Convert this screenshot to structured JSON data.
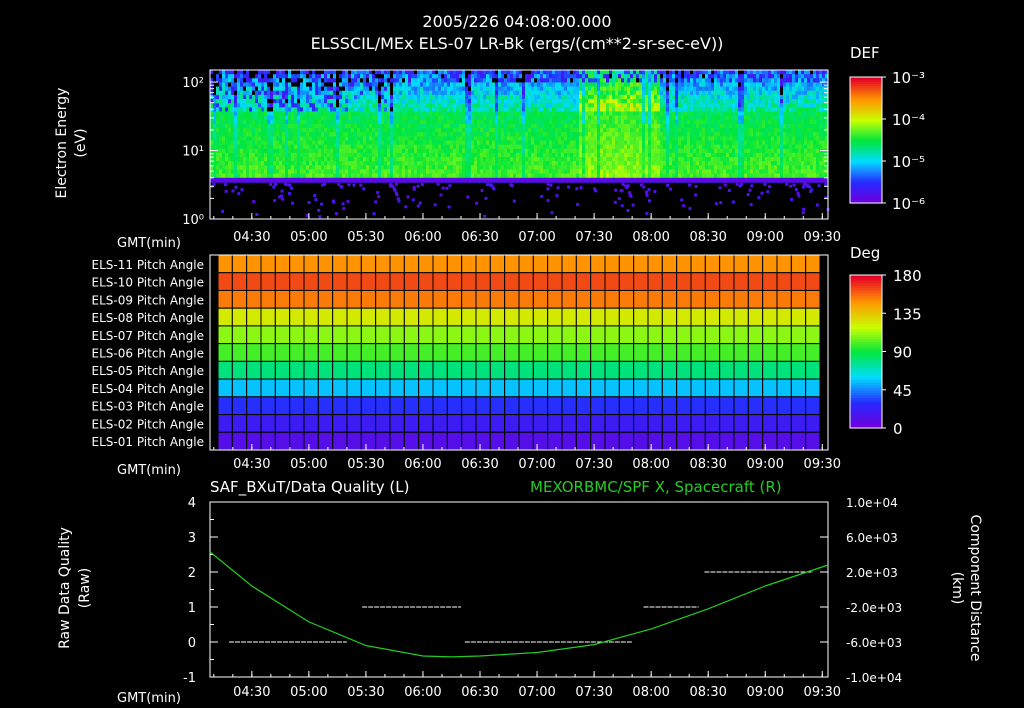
{
  "header": {
    "title_line1": "2005/226 04:08:00.000",
    "title_line2": "ELSSCIL/MEx ELS-07 LR-Bk   (ergs/(cm**2-sr-sec-eV))"
  },
  "time_axis": {
    "label": "GMT(min)",
    "ticks": [
      "04:30",
      "05:00",
      "05:30",
      "06:00",
      "06:30",
      "07:00",
      "07:30",
      "08:00",
      "08:30",
      "09:00",
      "09:30"
    ]
  },
  "chart_data": [
    {
      "type": "heatmap",
      "title": "ELSSCIL/MEx ELS-07 LR-Bk   (ergs/(cm**2-sr-sec-eV))",
      "ylabel_line1": "Electron Energy",
      "ylabel_line2": "(eV)",
      "yscale": "log",
      "ylim": [
        1,
        150
      ],
      "yticks": [
        "10²",
        "10¹",
        "10⁰"
      ],
      "xlim": [
        "04:08",
        "09:33"
      ],
      "colorbar": {
        "label": "DEF",
        "ticks": [
          "10⁻³",
          "10⁻⁴",
          "10⁻⁵",
          "10⁻⁶"
        ],
        "range": [
          "1e-6",
          "1e-3"
        ]
      },
      "features": {
        "energy_cutoff_eV": 4,
        "dominant_level_below_10eV": "1e-5 to 1e-4",
        "enhancement_window": [
          "07:30",
          "08:00"
        ]
      }
    },
    {
      "type": "heatmap",
      "rows": [
        "ELS-11 Pitch Angle",
        "ELS-10 Pitch Angle",
        "ELS-09 Pitch Angle",
        "ELS-08 Pitch Angle",
        "ELS-07 Pitch Angle",
        "ELS-06 Pitch Angle",
        "ELS-05 Pitch Angle",
        "ELS-04 Pitch Angle",
        "ELS-03 Pitch Angle",
        "ELS-02 Pitch Angle",
        "ELS-01 Pitch Angle"
      ],
      "pitch_angle_deg": [
        150,
        165,
        155,
        125,
        110,
        100,
        80,
        55,
        30,
        20,
        10
      ],
      "columns": 42,
      "colorbar": {
        "label": "Deg",
        "ticks": [
          "180",
          "135",
          "90",
          "45",
          "0"
        ],
        "range": [
          0,
          180
        ]
      }
    },
    {
      "type": "line",
      "title_left": "SAF_BXuT/Data Quality (L)",
      "title_right": "MEXORBMC/SPF X, Spacecraft (R)",
      "ylabel_left_line1": "Raw Data Quality",
      "ylabel_left_line2": "(Raw)",
      "ylabel_right_line1": "Component Distance",
      "ylabel_right_line2": "(km)",
      "ylim_left": [
        -1,
        4
      ],
      "yticks_left": [
        "4",
        "3",
        "2",
        "1",
        "0",
        "-1"
      ],
      "ylim_right": [
        -10000,
        10000
      ],
      "yticks_right": [
        "1.0e+04",
        "6.0e+03",
        "2.0e+03",
        "-2.0e+03",
        "-6.0e+03",
        "-1.0e+04"
      ],
      "series": [
        {
          "name": "SAF_BXuT/Data Quality",
          "axis": "left",
          "color": "#ffffff",
          "segments": [
            {
              "x": [
                "04:18",
                "05:20"
              ],
              "y": 0
            },
            {
              "x": [
                "05:28",
                "06:20"
              ],
              "y": 1
            },
            {
              "x": [
                "06:22",
                "07:50"
              ],
              "y": 0
            },
            {
              "x": [
                "07:56",
                "08:25"
              ],
              "y": 1
            },
            {
              "x": [
                "08:28",
                "09:25"
              ],
              "y": 2
            }
          ]
        },
        {
          "name": "MEXORBMC/SPF X, Spacecraft",
          "axis": "right",
          "color": "#22cc22",
          "x": [
            "04:08",
            "04:30",
            "05:00",
            "05:30",
            "06:00",
            "06:15",
            "06:30",
            "07:00",
            "07:30",
            "08:00",
            "08:30",
            "09:00",
            "09:33"
          ],
          "y": [
            4300,
            400,
            -3700,
            -6400,
            -7600,
            -7700,
            -7600,
            -7200,
            -6300,
            -4500,
            -2200,
            400,
            2800
          ]
        }
      ]
    }
  ],
  "colors": {
    "background": "#000000",
    "text": "#ffffff",
    "green_line": "#22cc22",
    "right_title": "#22cc22"
  }
}
